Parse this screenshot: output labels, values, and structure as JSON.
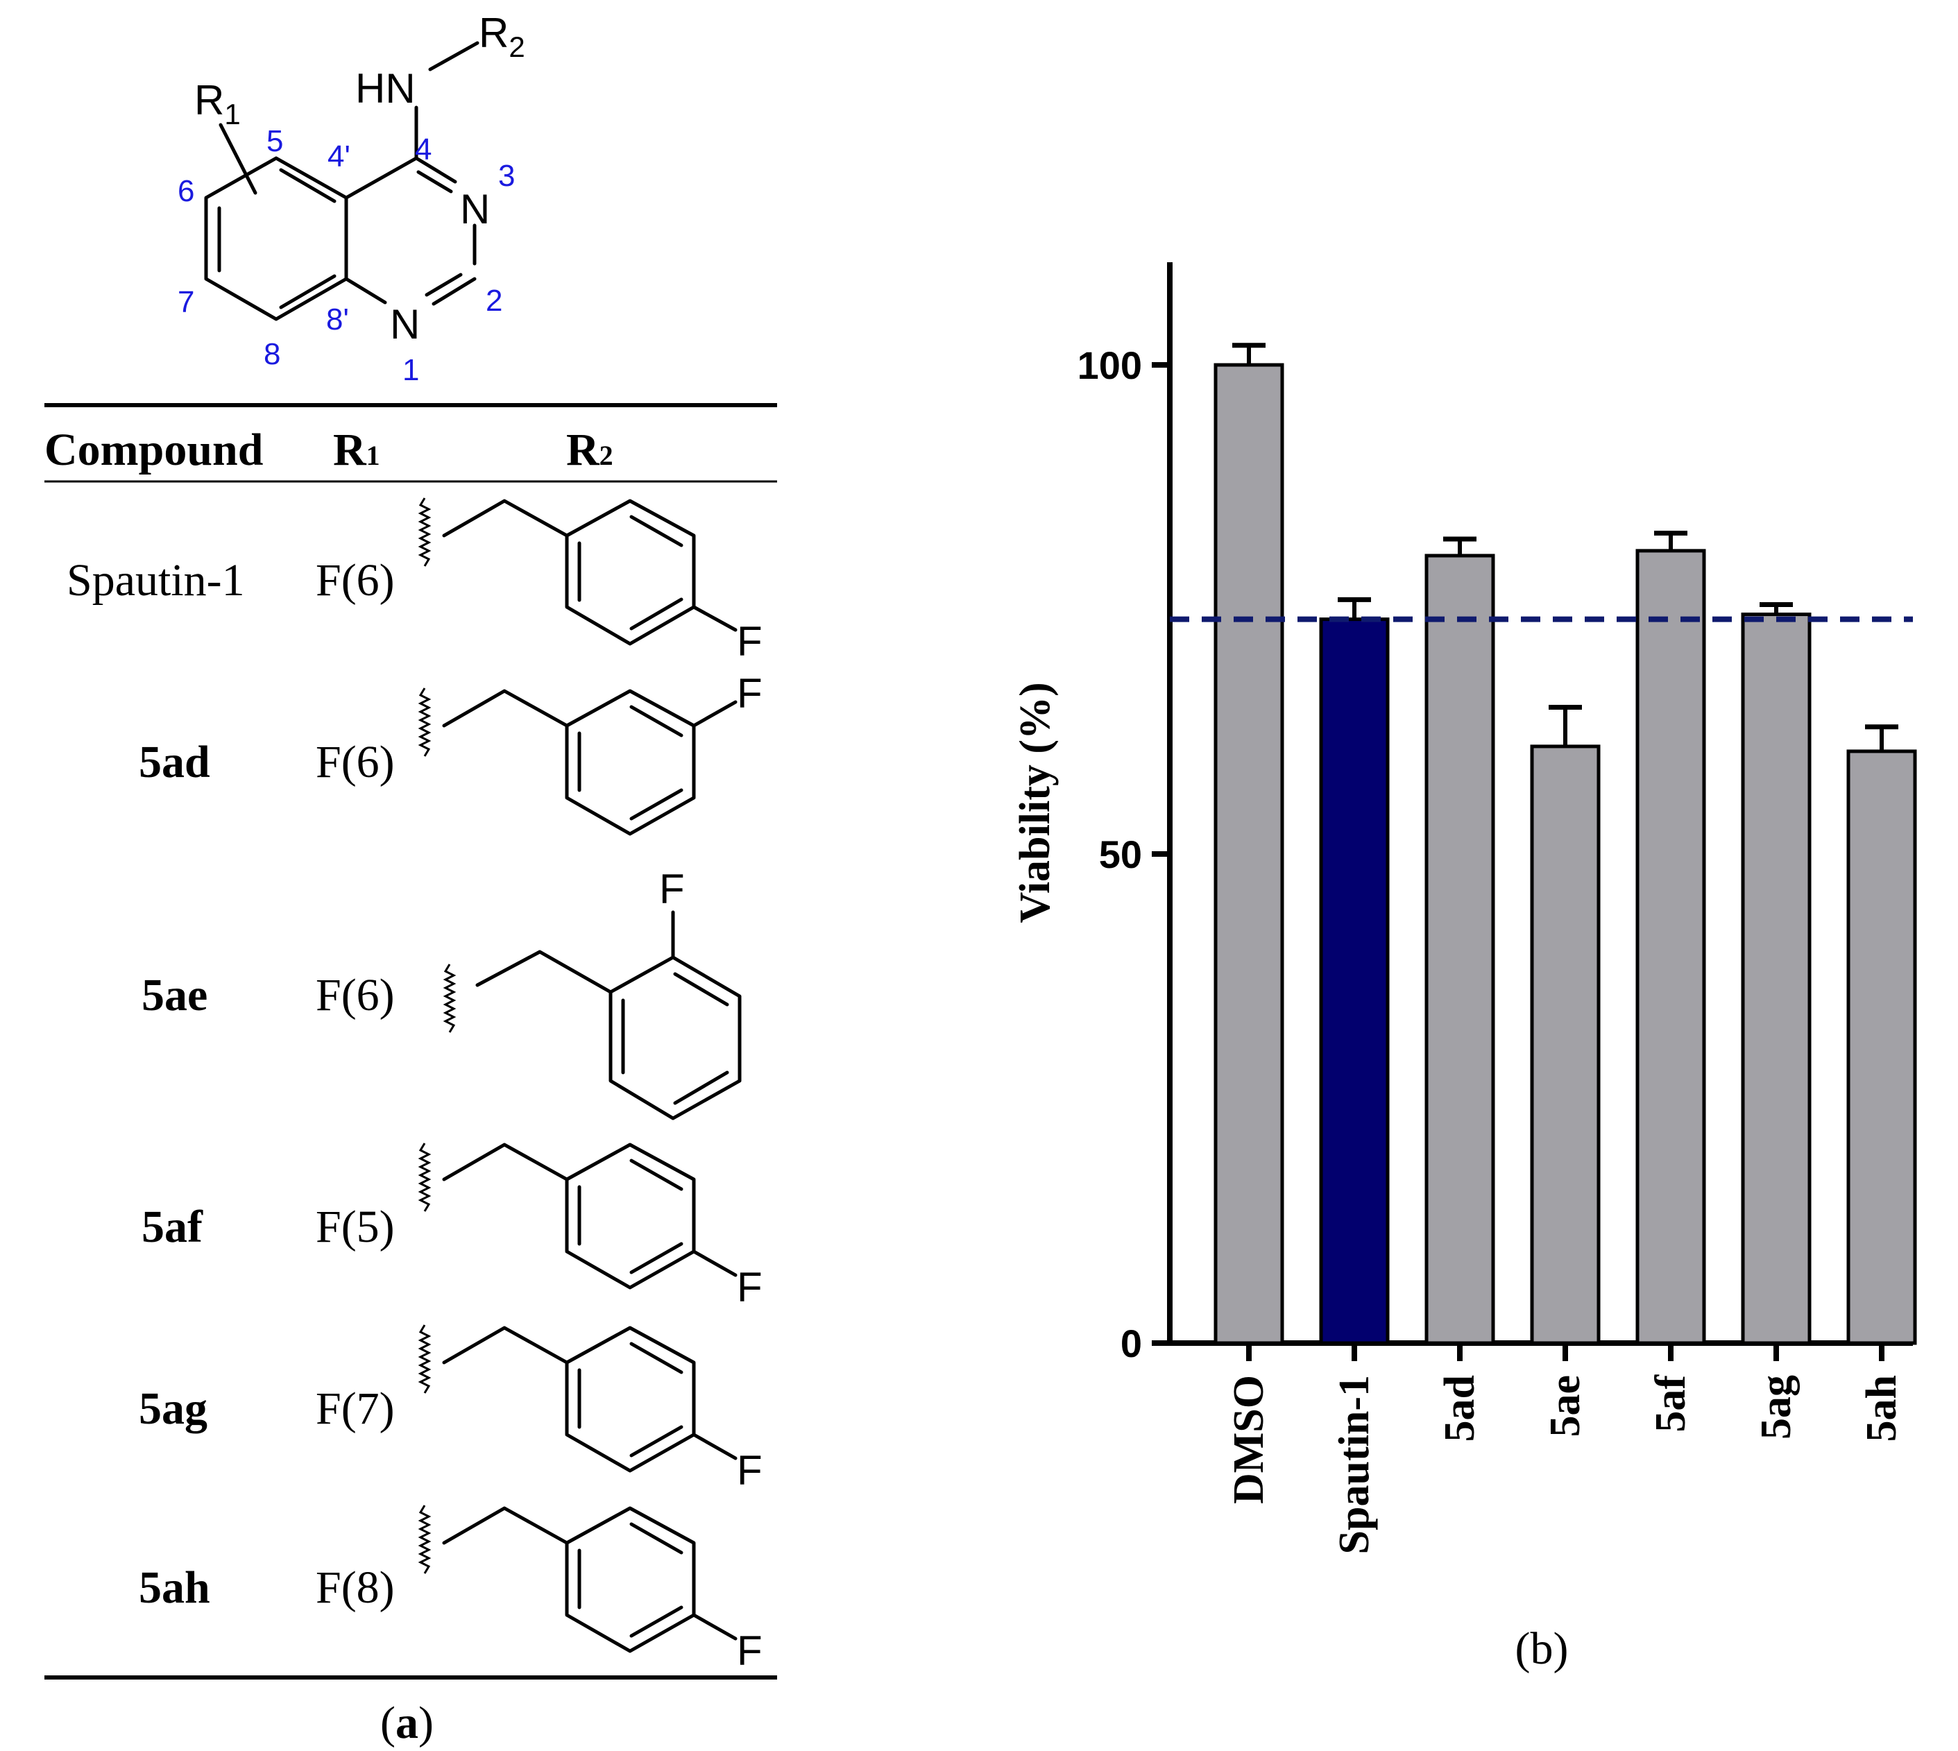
{
  "scaffold": {
    "r1_label": "R",
    "r1_sub": "1",
    "r2_label": "R",
    "r2_sub": "2",
    "hn_label": "HN",
    "n3_label": "N",
    "n1_label": "N",
    "positions": [
      "5",
      "4'",
      "4",
      "3",
      "6",
      "2",
      "7",
      "8'",
      "1",
      "8"
    ]
  },
  "table": {
    "header": {
      "compound": "Compound",
      "r1": "R",
      "r1_sub": "1",
      "r2": "R",
      "r2_sub": "2"
    },
    "rows": [
      {
        "compound": "Spautin-1",
        "compound_bold": false,
        "r1": "F(6)",
        "r2_substituent": "4-F-benzyl"
      },
      {
        "compound": "5ad",
        "compound_bold": true,
        "r1": "F(6)",
        "r2_substituent": "3-F-benzyl"
      },
      {
        "compound": "5ae",
        "compound_bold": true,
        "r1": "F(6)",
        "r2_substituent": "2-F-benzyl"
      },
      {
        "compound": "5af",
        "compound_bold": true,
        "r1": "F(5)",
        "r2_substituent": "4-F-benzyl"
      },
      {
        "compound": "5ag",
        "compound_bold": true,
        "r1": "F(7)",
        "r2_substituent": "4-F-benzyl"
      },
      {
        "compound": "5ah",
        "compound_bold": true,
        "r1": "F(8)",
        "r2_substituent": "4-F-benzyl"
      }
    ],
    "fluorine_label": "F",
    "panel_label_open": "(",
    "panel_label_letter": "a",
    "panel_label_close": ")"
  },
  "chart_data": {
    "type": "bar",
    "categories": [
      "DMSO",
      "Spautin-1",
      "5ad",
      "5ae",
      "5af",
      "5ag",
      "5ah"
    ],
    "values": [
      100,
      74,
      80.5,
      61,
      81,
      74.5,
      60.5
    ],
    "errors": [
      2,
      2,
      1.7,
      4,
      1.8,
      1,
      2.5
    ],
    "bar_colors": [
      "#a2a1a6",
      "#02006e",
      "#a2a1a6",
      "#a2a1a6",
      "#a2a1a6",
      "#a2a1a6",
      "#a2a1a6"
    ],
    "reference_line": {
      "value": 74,
      "color": "#0f1a6e",
      "style": "dashed"
    },
    "ylabel": "Viability (%)",
    "xlabel": "",
    "ylim": [
      0,
      110
    ],
    "yticks": [
      0,
      50,
      100
    ],
    "grid": false,
    "panel_label": "(b)"
  }
}
